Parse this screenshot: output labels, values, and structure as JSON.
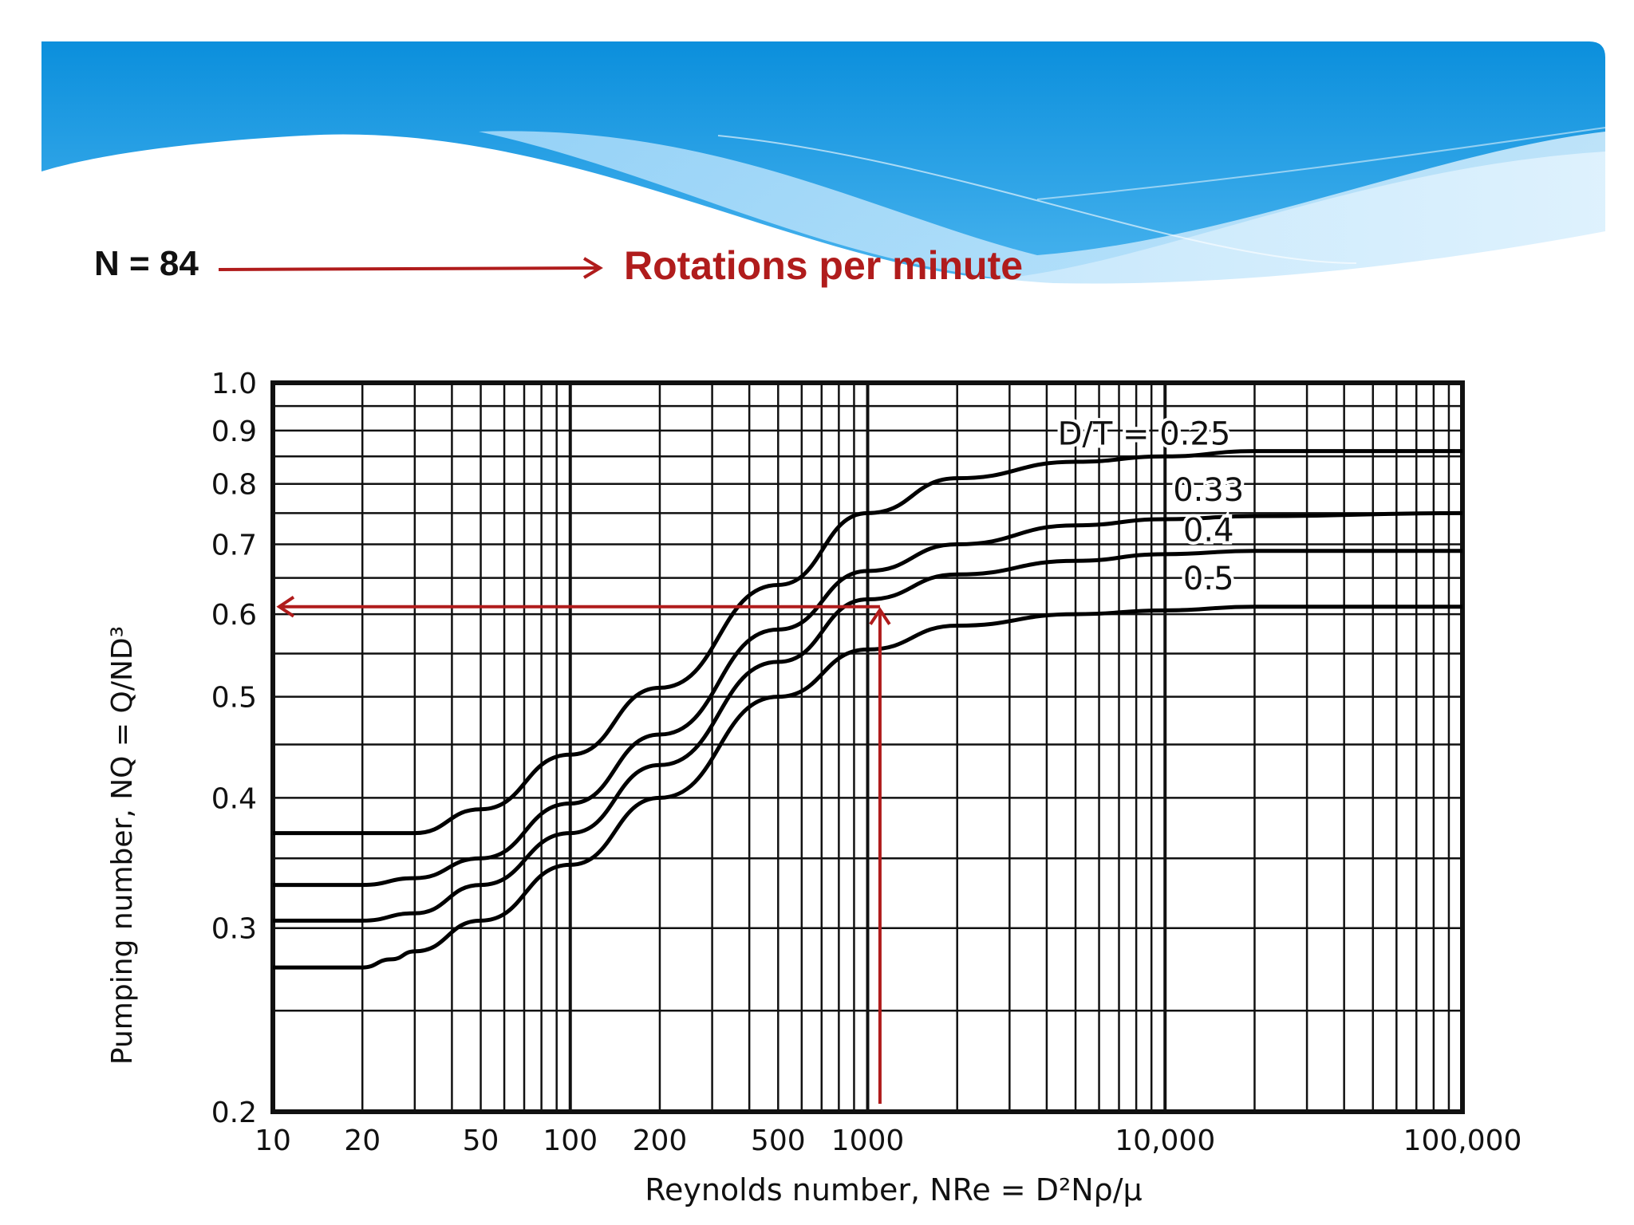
{
  "slide": {
    "note_left": "N = 84",
    "note_right": "Rotations per minute",
    "accent_color": "#b01c1c",
    "banner_color": "#0b8fdc"
  },
  "chart_data": {
    "type": "line",
    "xlabel": "Reynolds number, NRe = D²Nρ/μ",
    "ylabel": "Pumping number, NQ = Q/ND³",
    "x_scale": "log",
    "y_scale": "log",
    "xlim": [
      10,
      100000
    ],
    "ylim": [
      0.2,
      1.0
    ],
    "grid": true,
    "x_ticks": [
      10,
      20,
      50,
      100,
      200,
      500,
      1000,
      10000,
      100000
    ],
    "x_tick_labels": [
      "10",
      "20",
      "50",
      "100",
      "200",
      "500",
      "1000",
      "10,000",
      "100,000"
    ],
    "y_ticks": [
      0.2,
      0.3,
      0.4,
      0.5,
      0.6,
      0.7,
      0.8,
      0.9,
      1.0
    ],
    "y_tick_labels": [
      "0.2",
      "0.3",
      "0.4",
      "0.5",
      "0.6",
      "0.7",
      "0.8",
      "0.9",
      "1.0"
    ],
    "series": [
      {
        "name": "D/T = 0.25",
        "x": [
          10,
          20,
          30,
          50,
          100,
          200,
          500,
          1000,
          2000,
          5000,
          10000,
          20000,
          100000
        ],
        "y": [
          0.37,
          0.37,
          0.37,
          0.39,
          0.44,
          0.51,
          0.64,
          0.75,
          0.81,
          0.84,
          0.85,
          0.86,
          0.86
        ]
      },
      {
        "name": "0.33",
        "x": [
          10,
          20,
          30,
          50,
          100,
          200,
          500,
          1000,
          2000,
          5000,
          10000,
          20000,
          100000
        ],
        "y": [
          0.33,
          0.33,
          0.335,
          0.35,
          0.395,
          0.46,
          0.58,
          0.66,
          0.7,
          0.73,
          0.74,
          0.745,
          0.75
        ]
      },
      {
        "name": "0.4",
        "x": [
          10,
          20,
          30,
          50,
          100,
          200,
          500,
          1000,
          2000,
          5000,
          10000,
          20000,
          100000
        ],
        "y": [
          0.305,
          0.305,
          0.31,
          0.33,
          0.37,
          0.43,
          0.54,
          0.62,
          0.655,
          0.675,
          0.685,
          0.69,
          0.69
        ]
      },
      {
        "name": "0.5",
        "x": [
          10,
          20,
          25,
          30,
          50,
          100,
          200,
          500,
          1000,
          2000,
          5000,
          10000,
          20000,
          100000
        ],
        "y": [
          0.275,
          0.275,
          0.28,
          0.285,
          0.305,
          0.345,
          0.4,
          0.5,
          0.555,
          0.585,
          0.6,
          0.605,
          0.61,
          0.61
        ]
      }
    ],
    "annotation": {
      "description": "red arrows: up from NRe at 1100 to the 0.4 curve, then left to the y-axis",
      "x": 1100,
      "y": 0.61
    }
  }
}
